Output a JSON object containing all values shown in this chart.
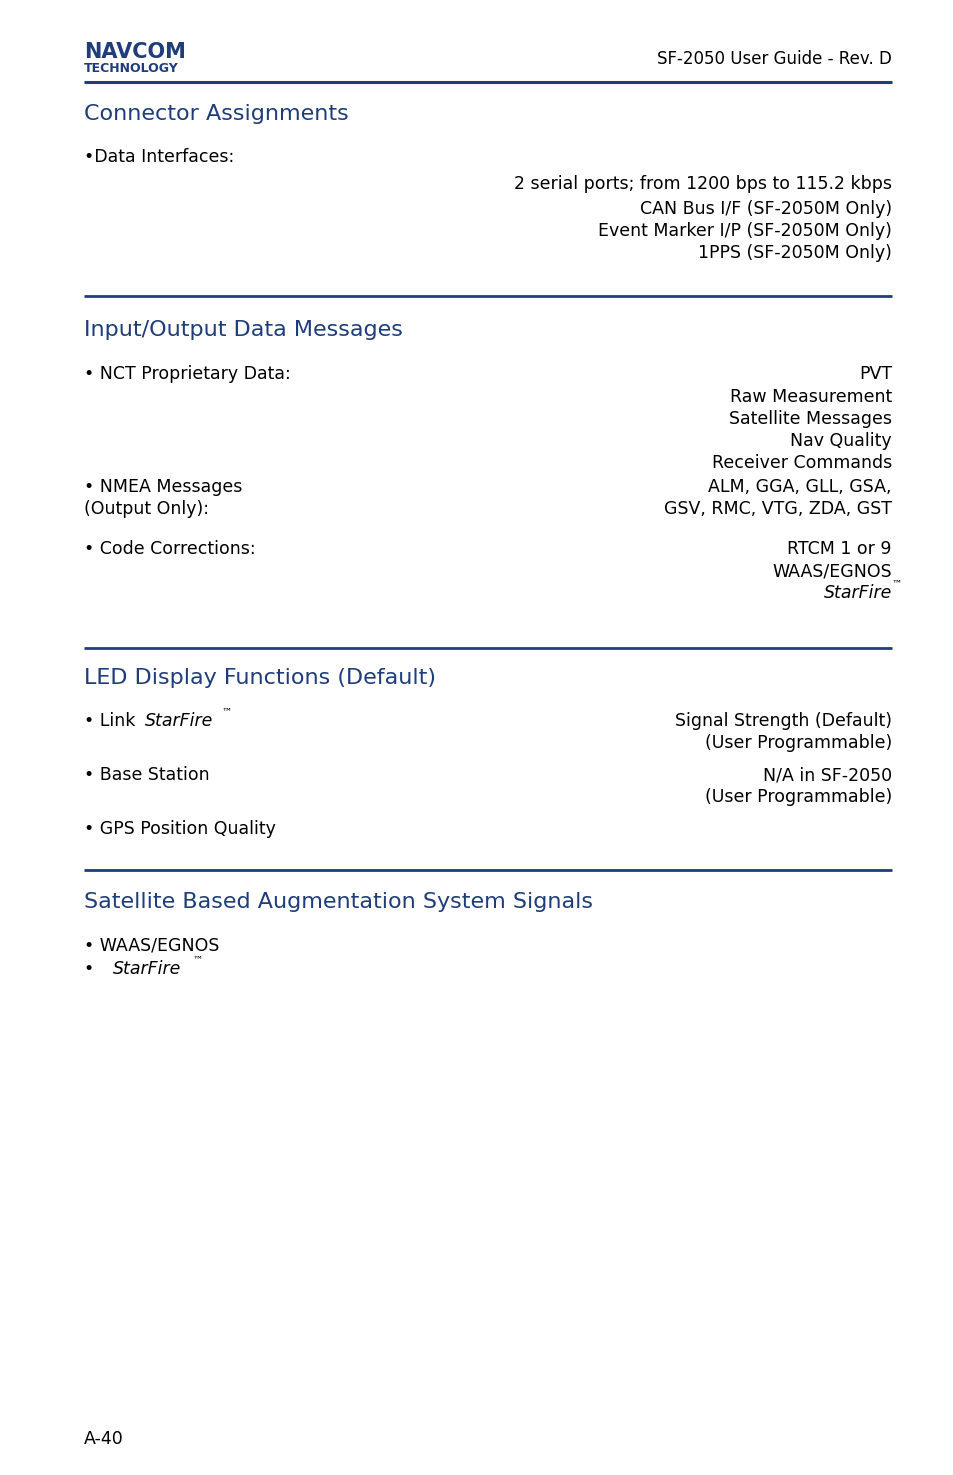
{
  "bg_color": "#ffffff",
  "header_right": "SF-2050 User Guide - Rev. D",
  "section1_title": "Connector Assignments",
  "section2_title": "Input/Output Data Messages",
  "section3_title": "LED Display Functions (Default)",
  "section4_title": "Satellite Based Augmentation System Signals",
  "accent_color": "#1f3d7a",
  "text_color": "#000000",
  "body_font_size": 12.5,
  "section_font_size": 16,
  "header_font_size": 12,
  "page_number": "A-40",
  "ml": 0.088,
  "mr": 0.935,
  "line_color": "#1f3d7a",
  "navcom_color": "#1f3d7a"
}
